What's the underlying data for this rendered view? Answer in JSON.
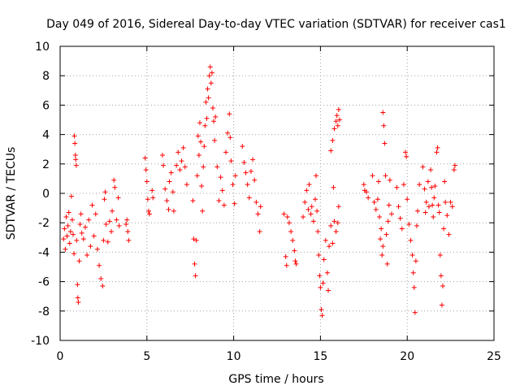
{
  "chart_data": {
    "type": "scatter",
    "title": "Day 049 of 2016, Sidereal Day-to-day VTEC variation (SDTVAR) for receiver cas1",
    "xlabel": "GPS time / hours",
    "ylabel": "SDTVAR / TECUs",
    "xlim": [
      0,
      25
    ],
    "ylim": [
      -10,
      10
    ],
    "x_ticks": [
      0,
      5,
      10,
      15,
      20,
      25
    ],
    "y_ticks": [
      -10,
      -8,
      -6,
      -4,
      -2,
      0,
      2,
      4,
      6,
      8,
      10
    ],
    "x_tick_labels": [
      "0",
      "5",
      "10",
      "15",
      "20",
      "25"
    ],
    "y_tick_labels": [
      "-10",
      "-8",
      "-6",
      "-4",
      "-2",
      "0",
      "2",
      "4",
      "6",
      "8",
      "10"
    ],
    "grid": true,
    "marker": "+",
    "marker_color": "#ff0000",
    "series": [
      {
        "name": "cas1",
        "points": [
          [
            0.2,
            -3.1
          ],
          [
            0.25,
            -2.4
          ],
          [
            0.3,
            -3.8
          ],
          [
            0.35,
            -1.6
          ],
          [
            0.4,
            -2.9
          ],
          [
            0.45,
            -2.2
          ],
          [
            0.5,
            -1.3
          ],
          [
            0.55,
            -3.4
          ],
          [
            0.6,
            -2.6
          ],
          [
            0.65,
            -0.2
          ],
          [
            0.7,
            -1.8
          ],
          [
            0.75,
            -2.8
          ],
          [
            0.8,
            -4.1
          ],
          [
            0.82,
            3.9
          ],
          [
            0.85,
            3.4
          ],
          [
            0.88,
            2.6
          ],
          [
            0.9,
            2.3
          ],
          [
            0.93,
            1.9
          ],
          [
            0.95,
            -3.2
          ],
          [
            1.0,
            -6.2
          ],
          [
            1.02,
            -7.1
          ],
          [
            1.05,
            -7.4
          ],
          [
            1.1,
            -4.6
          ],
          [
            1.15,
            -2.1
          ],
          [
            1.2,
            -1.4
          ],
          [
            1.25,
            -2.7
          ],
          [
            1.35,
            -3.1
          ],
          [
            1.45,
            -2.3
          ],
          [
            1.55,
            -4.2
          ],
          [
            1.65,
            -1.8
          ],
          [
            1.75,
            -3.6
          ],
          [
            1.85,
            -0.8
          ],
          [
            1.95,
            -2.9
          ],
          [
            2.05,
            -1.4
          ],
          [
            2.15,
            -3.8
          ],
          [
            2.25,
            -4.9
          ],
          [
            2.35,
            -5.8
          ],
          [
            2.45,
            -6.3
          ],
          [
            2.5,
            -3.2
          ],
          [
            2.55,
            -0.4
          ],
          [
            2.6,
            0.1
          ],
          [
            2.65,
            -2.1
          ],
          [
            2.75,
            -3.3
          ],
          [
            2.85,
            -1.9
          ],
          [
            2.95,
            -2.6
          ],
          [
            3.0,
            -1.2
          ],
          [
            3.1,
            0.9
          ],
          [
            3.15,
            0.4
          ],
          [
            3.25,
            -1.8
          ],
          [
            3.35,
            -0.3
          ],
          [
            3.4,
            -2.2
          ],
          [
            3.8,
            -2.1
          ],
          [
            3.85,
            -1.8
          ],
          [
            3.9,
            -2.6
          ],
          [
            3.95,
            -3.2
          ],
          [
            4.9,
            2.4
          ],
          [
            4.95,
            1.6
          ],
          [
            5.0,
            0.8
          ],
          [
            5.05,
            -0.4
          ],
          [
            5.1,
            -1.2
          ],
          [
            5.15,
            -1.4
          ],
          [
            5.3,
            0.2
          ],
          [
            5.35,
            -0.3
          ],
          [
            5.9,
            2.6
          ],
          [
            5.95,
            1.9
          ],
          [
            6.05,
            0.3
          ],
          [
            6.15,
            -0.5
          ],
          [
            6.25,
            -1.1
          ],
          [
            6.3,
            0.8
          ],
          [
            6.4,
            1.4
          ],
          [
            6.5,
            0.1
          ],
          [
            6.55,
            -1.2
          ],
          [
            6.7,
            1.9
          ],
          [
            6.8,
            2.8
          ],
          [
            6.9,
            1.6
          ],
          [
            7.0,
            2.2
          ],
          [
            7.1,
            3.1
          ],
          [
            7.2,
            1.8
          ],
          [
            7.3,
            0.6
          ],
          [
            7.65,
            -0.5
          ],
          [
            7.7,
            -3.1
          ],
          [
            7.75,
            -4.8
          ],
          [
            7.8,
            -5.6
          ],
          [
            7.85,
            -3.2
          ],
          [
            7.9,
            1.2
          ],
          [
            7.95,
            3.9
          ],
          [
            8.0,
            2.6
          ],
          [
            8.05,
            4.8
          ],
          [
            8.1,
            3.5
          ],
          [
            8.15,
            0.5
          ],
          [
            8.2,
            -1.2
          ],
          [
            8.25,
            1.8
          ],
          [
            8.3,
            3.2
          ],
          [
            8.35,
            4.6
          ],
          [
            8.4,
            6.2
          ],
          [
            8.45,
            5.1
          ],
          [
            8.5,
            7.1
          ],
          [
            8.55,
            6.5
          ],
          [
            8.6,
            8.0
          ],
          [
            8.65,
            8.6
          ],
          [
            8.7,
            7.5
          ],
          [
            8.75,
            8.2
          ],
          [
            8.8,
            5.8
          ],
          [
            8.85,
            4.9
          ],
          [
            8.9,
            3.6
          ],
          [
            8.95,
            5.2
          ],
          [
            9.05,
            1.8
          ],
          [
            9.15,
            -0.5
          ],
          [
            9.25,
            1.1
          ],
          [
            9.35,
            0.2
          ],
          [
            9.45,
            -0.8
          ],
          [
            9.55,
            2.8
          ],
          [
            9.65,
            4.1
          ],
          [
            9.75,
            5.4
          ],
          [
            9.8,
            3.8
          ],
          [
            9.85,
            2.2
          ],
          [
            9.95,
            0.6
          ],
          [
            10.05,
            -0.7
          ],
          [
            10.1,
            1.2
          ],
          [
            10.5,
            3.2
          ],
          [
            10.6,
            2.1
          ],
          [
            10.7,
            1.4
          ],
          [
            10.8,
            0.6
          ],
          [
            10.9,
            -0.3
          ],
          [
            11.0,
            1.5
          ],
          [
            11.1,
            2.3
          ],
          [
            11.2,
            0.9
          ],
          [
            11.3,
            -0.6
          ],
          [
            11.4,
            -1.4
          ],
          [
            11.5,
            -2.6
          ],
          [
            11.55,
            -0.9
          ],
          [
            12.9,
            -1.4
          ],
          [
            13.0,
            -4.3
          ],
          [
            13.05,
            -4.9
          ],
          [
            13.1,
            -1.6
          ],
          [
            13.2,
            -2.0
          ],
          [
            13.3,
            -2.6
          ],
          [
            13.4,
            -3.2
          ],
          [
            13.5,
            -3.9
          ],
          [
            13.55,
            -4.6
          ],
          [
            13.6,
            -4.8
          ],
          [
            14.0,
            -1.6
          ],
          [
            14.1,
            -0.6
          ],
          [
            14.2,
            0.2
          ],
          [
            14.3,
            -1.1
          ],
          [
            14.35,
            0.6
          ],
          [
            14.45,
            -1.4
          ],
          [
            14.5,
            -0.9
          ],
          [
            14.6,
            -1.9
          ],
          [
            14.7,
            -0.4
          ],
          [
            14.75,
            1.2
          ],
          [
            14.8,
            -1.2
          ],
          [
            14.85,
            -2.6
          ],
          [
            14.9,
            -4.2
          ],
          [
            14.95,
            -5.6
          ],
          [
            15.0,
            -6.4
          ],
          [
            15.05,
            -7.9
          ],
          [
            15.1,
            -8.3
          ],
          [
            15.15,
            -6.1
          ],
          [
            15.2,
            -4.5
          ],
          [
            15.3,
            -3.2
          ],
          [
            15.4,
            -5.4
          ],
          [
            15.45,
            -6.6
          ],
          [
            15.5,
            -3.6
          ],
          [
            15.6,
            -2.2
          ],
          [
            15.7,
            -3.4
          ],
          [
            15.75,
            0.4
          ],
          [
            15.8,
            -1.9
          ],
          [
            15.9,
            -2.6
          ],
          [
            16.0,
            -2.0
          ],
          [
            16.05,
            -0.9
          ],
          [
            15.6,
            2.9
          ],
          [
            15.7,
            3.6
          ],
          [
            15.8,
            4.4
          ],
          [
            15.9,
            4.9
          ],
          [
            15.95,
            5.3
          ],
          [
            16.0,
            4.6
          ],
          [
            16.05,
            5.7
          ],
          [
            16.1,
            5.0
          ],
          [
            17.5,
            0.6
          ],
          [
            17.55,
            0.2
          ],
          [
            17.65,
            0.1
          ],
          [
            17.75,
            -0.3
          ],
          [
            18.0,
            1.2
          ],
          [
            18.1,
            -0.6
          ],
          [
            18.2,
            -1.1
          ],
          [
            18.3,
            -0.4
          ],
          [
            18.35,
            0.8
          ],
          [
            18.4,
            -1.6
          ],
          [
            18.45,
            -3.1
          ],
          [
            18.5,
            -2.4
          ],
          [
            18.55,
            -4.2
          ],
          [
            18.6,
            -3.6
          ],
          [
            18.6,
            5.5
          ],
          [
            18.65,
            4.6
          ],
          [
            18.7,
            3.4
          ],
          [
            18.75,
            1.2
          ],
          [
            18.8,
            -2.8
          ],
          [
            18.85,
            -4.8
          ],
          [
            18.9,
            -1.9
          ],
          [
            18.95,
            -0.8
          ],
          [
            19.0,
            0.9
          ],
          [
            19.1,
            -1.4
          ],
          [
            19.4,
            0.4
          ],
          [
            19.5,
            -0.9
          ],
          [
            19.6,
            -1.7
          ],
          [
            19.7,
            -2.4
          ],
          [
            19.8,
            0.6
          ],
          [
            19.9,
            2.8
          ],
          [
            19.95,
            2.5
          ],
          [
            20.0,
            -0.4
          ],
          [
            20.1,
            -2.1
          ],
          [
            20.2,
            -3.2
          ],
          [
            20.3,
            -4.2
          ],
          [
            20.35,
            -5.4
          ],
          [
            20.4,
            -6.4
          ],
          [
            20.45,
            -8.1
          ],
          [
            20.5,
            -4.6
          ],
          [
            20.55,
            -2.2
          ],
          [
            20.6,
            -1.2
          ],
          [
            20.7,
            0.6
          ],
          [
            20.9,
            1.8
          ],
          [
            21.0,
            0.3
          ],
          [
            21.05,
            -1.3
          ],
          [
            21.1,
            -0.6
          ],
          [
            21.2,
            0.8
          ],
          [
            21.25,
            -0.9
          ],
          [
            21.35,
            1.6
          ],
          [
            21.4,
            0.4
          ],
          [
            21.45,
            -0.8
          ],
          [
            21.5,
            -1.6
          ],
          [
            21.55,
            -0.3
          ],
          [
            21.6,
            0.5
          ],
          [
            21.7,
            2.8
          ],
          [
            21.75,
            3.1
          ],
          [
            21.8,
            -0.8
          ],
          [
            21.85,
            -1.3
          ],
          [
            21.9,
            -4.2
          ],
          [
            21.95,
            -5.6
          ],
          [
            22.0,
            -7.6
          ],
          [
            22.05,
            -6.3
          ],
          [
            22.1,
            -2.4
          ],
          [
            22.15,
            0.8
          ],
          [
            22.2,
            -0.6
          ],
          [
            22.3,
            -1.5
          ],
          [
            22.4,
            -2.8
          ],
          [
            22.5,
            -0.6
          ],
          [
            22.6,
            -0.9
          ],
          [
            22.7,
            1.6
          ],
          [
            22.75,
            1.9
          ]
        ]
      }
    ]
  }
}
